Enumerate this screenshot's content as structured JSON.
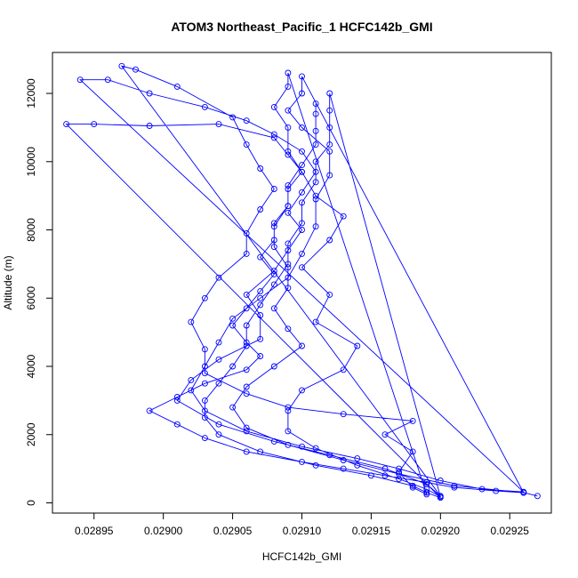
{
  "chart_data": {
    "type": "line",
    "title": "ATOM3 Northeast_Pacific_1 HCFC142b_GMI",
    "xlabel": "HCFC142b_GMI",
    "ylabel": "Altitude (m)",
    "xlim": [
      0.02892,
      0.02928
    ],
    "ylim": [
      -300,
      13200
    ],
    "x_ticks": [
      0.02895,
      0.029,
      0.02905,
      0.0291,
      0.02915,
      0.0292,
      0.02925
    ],
    "x_tick_labels": [
      "0.02895",
      "0.02900",
      "0.02905",
      "0.02910",
      "0.02915",
      "0.02920",
      "0.02925"
    ],
    "y_ticks": [
      0,
      2000,
      4000,
      6000,
      8000,
      10000,
      12000
    ],
    "y_tick_labels": [
      "0",
      "2000",
      "4000",
      "6000",
      "8000",
      "10000",
      "12000"
    ],
    "grid": false,
    "series": [
      {
        "color": "#0000ff",
        "marker": "open-circle",
        "points": [
          [
            0.02927,
            200
          ],
          [
            0.02926,
            300
          ],
          [
            0.02924,
            350
          ],
          [
            0.02921,
            450
          ],
          [
            0.02919,
            600
          ],
          [
            0.02916,
            800
          ],
          [
            0.02913,
            1000
          ],
          [
            0.0291,
            1200
          ],
          [
            0.02906,
            1500
          ],
          [
            0.02903,
            1900
          ],
          [
            0.02901,
            2300
          ],
          [
            0.02899,
            2700
          ],
          [
            0.02901,
            3100
          ],
          [
            0.02903,
            3500
          ],
          [
            0.02906,
            3900
          ],
          [
            0.02907,
            4300
          ],
          [
            0.02906,
            4700
          ],
          [
            0.02905,
            5200
          ],
          [
            0.02906,
            5700
          ],
          [
            0.02907,
            6200
          ],
          [
            0.02908,
            6700
          ],
          [
            0.02907,
            7200
          ],
          [
            0.02908,
            7700
          ],
          [
            0.02908,
            8200
          ],
          [
            0.02909,
            8700
          ],
          [
            0.02909,
            9200
          ],
          [
            0.0291,
            9700
          ],
          [
            0.02909,
            10200
          ],
          [
            0.02908,
            10700
          ],
          [
            0.02904,
            11100
          ],
          [
            0.02899,
            11050
          ],
          [
            0.02895,
            11100
          ],
          [
            0.02893,
            11100
          ],
          [
            0.0292,
            150
          ],
          [
            0.02919,
            300
          ],
          [
            0.02918,
            500
          ],
          [
            0.02915,
            800
          ],
          [
            0.02911,
            1100
          ],
          [
            0.02907,
            1500
          ],
          [
            0.02904,
            2000
          ],
          [
            0.02903,
            2500
          ],
          [
            0.02903,
            3000
          ],
          [
            0.02904,
            3500
          ],
          [
            0.02905,
            4000
          ],
          [
            0.02906,
            4600
          ],
          [
            0.02906,
            5200
          ],
          [
            0.02907,
            5800
          ],
          [
            0.02908,
            6400
          ],
          [
            0.02909,
            7000
          ],
          [
            0.02909,
            7600
          ],
          [
            0.0291,
            8200
          ],
          [
            0.0291,
            8800
          ],
          [
            0.02911,
            9400
          ],
          [
            0.02911,
            10000
          ],
          [
            0.02912,
            10500
          ],
          [
            0.02912,
            11000
          ],
          [
            0.02912,
            11500
          ],
          [
            0.02912,
            12000
          ],
          [
            0.0292,
            180
          ],
          [
            0.02919,
            400
          ],
          [
            0.02917,
            700
          ],
          [
            0.02914,
            1100
          ],
          [
            0.02911,
            1600
          ],
          [
            0.02909,
            2100
          ],
          [
            0.02909,
            2700
          ],
          [
            0.0291,
            3300
          ],
          [
            0.02913,
            3900
          ],
          [
            0.02914,
            4600
          ],
          [
            0.02911,
            5300
          ],
          [
            0.02912,
            6100
          ],
          [
            0.0291,
            6900
          ],
          [
            0.02912,
            7700
          ],
          [
            0.02913,
            8400
          ],
          [
            0.02911,
            9000
          ],
          [
            0.0291,
            9700
          ],
          [
            0.02909,
            10300
          ],
          [
            0.02909,
            11000
          ],
          [
            0.02908,
            11600
          ],
          [
            0.02909,
            12200
          ],
          [
            0.02909,
            12600
          ],
          [
            0.02919,
            250
          ],
          [
            0.02918,
            450
          ],
          [
            0.02917,
            900
          ],
          [
            0.02918,
            1500
          ],
          [
            0.02916,
            2000
          ],
          [
            0.02918,
            2400
          ],
          [
            0.02913,
            2600
          ],
          [
            0.02909,
            2800
          ],
          [
            0.02906,
            3200
          ],
          [
            0.02903,
            3800
          ],
          [
            0.02903,
            4500
          ],
          [
            0.02902,
            5300
          ],
          [
            0.02903,
            6000
          ],
          [
            0.02904,
            6600
          ],
          [
            0.02906,
            7300
          ],
          [
            0.02906,
            7900
          ],
          [
            0.02907,
            8600
          ],
          [
            0.02908,
            9200
          ],
          [
            0.02907,
            9800
          ],
          [
            0.02906,
            10500
          ],
          [
            0.02905,
            11300
          ],
          [
            0.02901,
            12200
          ],
          [
            0.02898,
            12700
          ],
          [
            0.02897,
            12800
          ],
          [
            0.0292,
            200
          ],
          [
            0.02919,
            550
          ],
          [
            0.02916,
            1000
          ],
          [
            0.02912,
            1400
          ],
          [
            0.02908,
            1800
          ],
          [
            0.02904,
            2300
          ],
          [
            0.02901,
            3000
          ],
          [
            0.02902,
            3600
          ],
          [
            0.02904,
            4200
          ],
          [
            0.02907,
            4800
          ],
          [
            0.02907,
            5500
          ],
          [
            0.02906,
            6100
          ],
          [
            0.02908,
            6800
          ],
          [
            0.02909,
            7400
          ],
          [
            0.0291,
            8000
          ],
          [
            0.02909,
            8500
          ],
          [
            0.0291,
            9100
          ],
          [
            0.02911,
            9700
          ],
          [
            0.0291,
            10300
          ],
          [
            0.02908,
            10800
          ],
          [
            0.02906,
            11200
          ],
          [
            0.02903,
            11600
          ],
          [
            0.02899,
            12000
          ],
          [
            0.02896,
            12400
          ],
          [
            0.02894,
            12400
          ],
          [
            0.02926,
            320
          ],
          [
            0.02923,
            400
          ],
          [
            0.0292,
            650
          ],
          [
            0.02917,
            1000
          ],
          [
            0.02914,
            1300
          ],
          [
            0.0291,
            1650
          ],
          [
            0.02906,
            2100
          ],
          [
            0.02903,
            2700
          ],
          [
            0.02902,
            3300
          ],
          [
            0.02903,
            4000
          ],
          [
            0.02904,
            4700
          ],
          [
            0.02905,
            5400
          ],
          [
            0.02907,
            6000
          ],
          [
            0.02909,
            6600
          ],
          [
            0.0291,
            7300
          ],
          [
            0.02911,
            8100
          ],
          [
            0.02911,
            8900
          ],
          [
            0.02912,
            9600
          ],
          [
            0.02912,
            10300
          ],
          [
            0.0291,
            11000
          ],
          [
            0.02909,
            11500
          ],
          [
            0.0291,
            12000
          ],
          [
            0.0291,
            12500
          ],
          [
            0.02926,
            300
          ],
          [
            0.02921,
            500
          ],
          [
            0.02917,
            850
          ],
          [
            0.02913,
            1250
          ],
          [
            0.02909,
            1700
          ],
          [
            0.02906,
            2200
          ],
          [
            0.02905,
            2800
          ],
          [
            0.02906,
            3400
          ],
          [
            0.02908,
            4000
          ],
          [
            0.0291,
            4600
          ],
          [
            0.02909,
            5100
          ],
          [
            0.02908,
            5700
          ],
          [
            0.02909,
            6300
          ],
          [
            0.02909,
            6900
          ],
          [
            0.02908,
            7500
          ],
          [
            0.02908,
            8100
          ],
          [
            0.02909,
            8700
          ],
          [
            0.02909,
            9300
          ],
          [
            0.0291,
            9900
          ],
          [
            0.02911,
            10500
          ],
          [
            0.02911,
            10900
          ],
          [
            0.02911,
            11400
          ],
          [
            0.02911,
            11700
          ]
        ]
      }
    ]
  }
}
